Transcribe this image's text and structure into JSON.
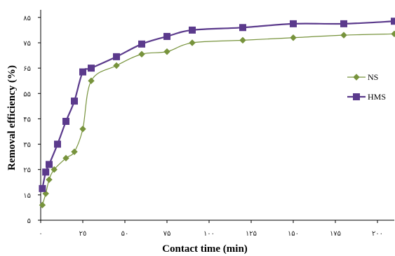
{
  "chart_data": {
    "type": "line",
    "xlabel": "Contact time (min)",
    "ylabel": "Removal efficiency (%)",
    "xlim": [
      0,
      210
    ],
    "ylim": [
      5,
      88
    ],
    "x_ticks": [
      0,
      25,
      50,
      75,
      100,
      125,
      150,
      175,
      200
    ],
    "x_tick_labels": [
      "٠",
      "٢٥",
      "۵٠",
      "٧۵",
      "١٠٠",
      "١٢۵",
      "١۵٠",
      "١٧۵",
      "٢٠٠"
    ],
    "y_ticks": [
      5,
      15,
      25,
      35,
      45,
      55,
      65,
      75,
      85
    ],
    "y_tick_labels": [
      "۵",
      "١۵",
      "٢۵",
      "٣۵",
      "۴۵",
      "۵۵",
      "۶۵",
      "٧۵",
      "٨۵"
    ],
    "grid": false,
    "legend_position": "right",
    "series": [
      {
        "name": "NS",
        "color": "#77933c",
        "marker": "diamond",
        "x": [
          1,
          3,
          5,
          8,
          15,
          20,
          25,
          30,
          45,
          60,
          75,
          90,
          120,
          150,
          180,
          210
        ],
        "y": [
          11,
          15.5,
          21,
          25,
          29.5,
          32,
          41,
          60,
          66,
          70.5,
          71.5,
          75,
          76,
          77,
          78,
          78.5
        ]
      },
      {
        "name": "HMS",
        "color": "#5b3a8c",
        "marker": "square",
        "x": [
          1,
          3,
          5,
          10,
          15,
          20,
          25,
          30,
          45,
          60,
          75,
          90,
          120,
          150,
          180,
          210
        ],
        "y": [
          17.5,
          24,
          27,
          35,
          44,
          52,
          63.5,
          65,
          69.5,
          74.5,
          77.5,
          80,
          81,
          82.5,
          82.5,
          83.5
        ]
      }
    ]
  }
}
